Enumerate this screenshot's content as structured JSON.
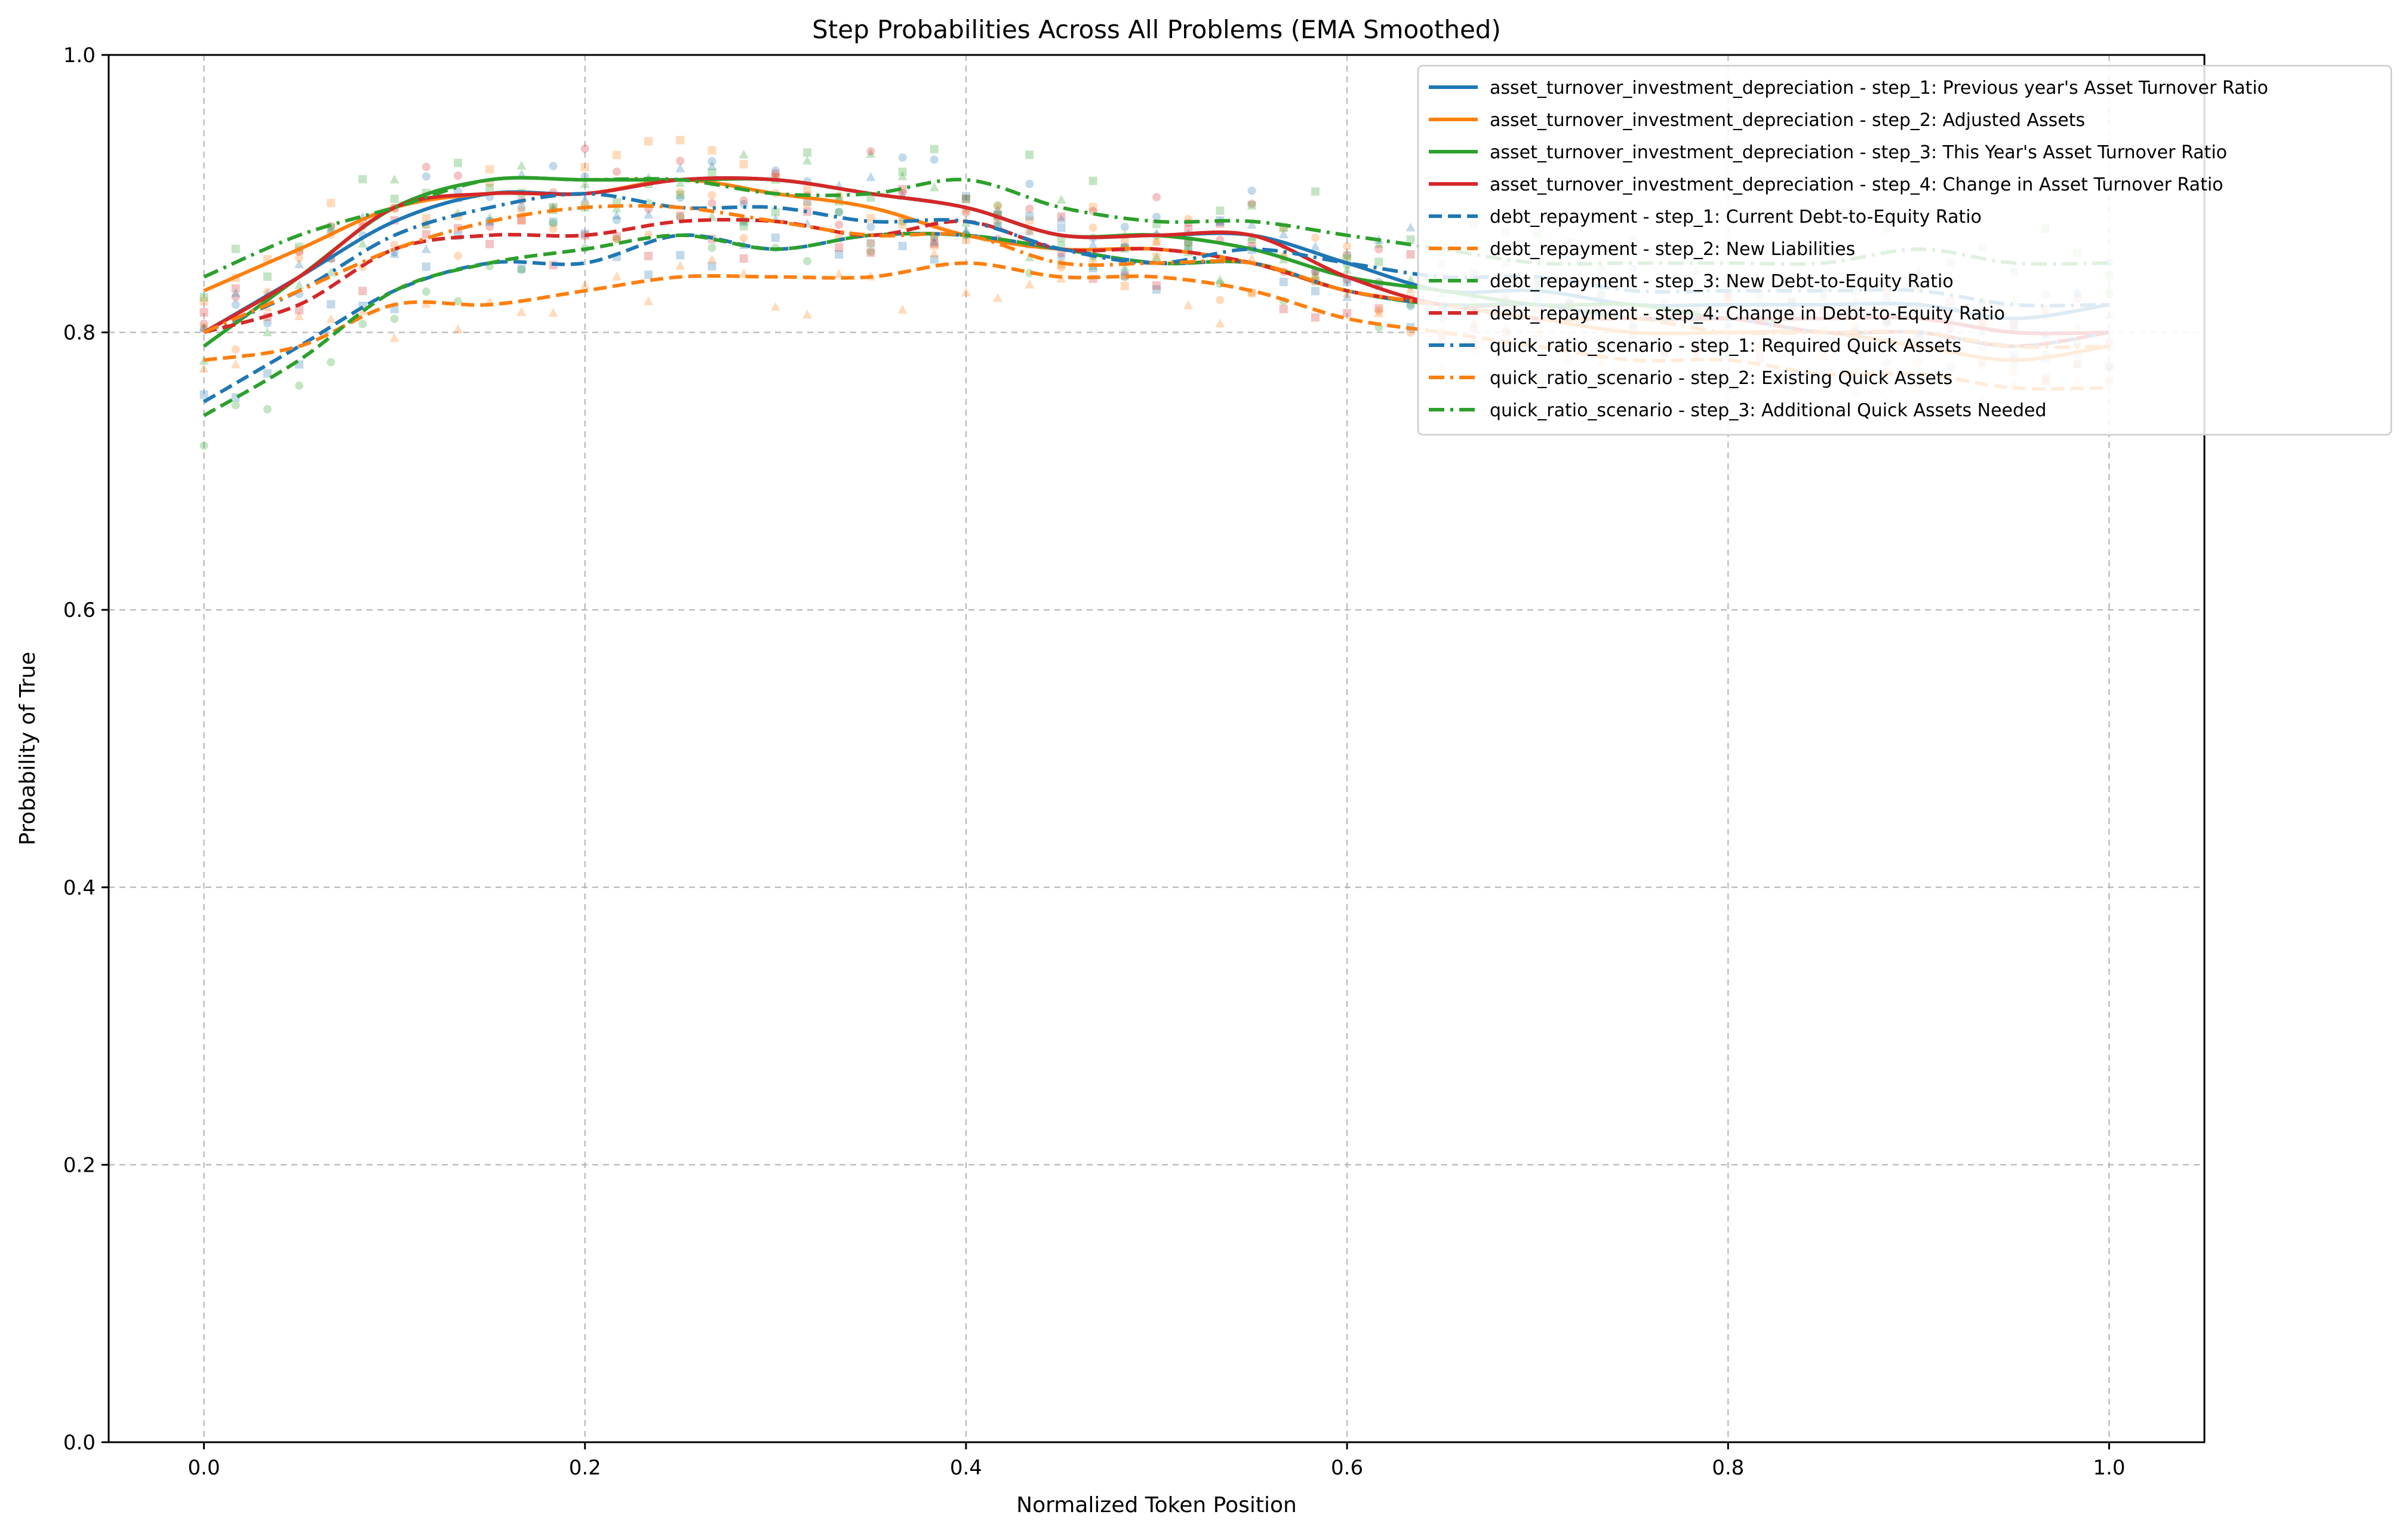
{
  "chart_data": {
    "type": "line",
    "title": "Step Probabilities Across All Problems (EMA Smoothed)",
    "xlabel": "Normalized Token Position",
    "ylabel": "Probability of True",
    "xlim": [
      -0.05,
      1.05
    ],
    "ylim": [
      0.0,
      1.0
    ],
    "xticks": [
      0.0,
      0.2,
      0.4,
      0.6,
      0.8,
      1.0
    ],
    "xtick_labels": [
      "0.0",
      "0.2",
      "0.4",
      "0.6",
      "0.8",
      "1.0"
    ],
    "yticks": [
      0.0,
      0.2,
      0.4,
      0.6,
      0.8,
      1.0
    ],
    "ytick_labels": [
      "0.0",
      "0.2",
      "0.4",
      "0.6",
      "0.8",
      "1.0"
    ],
    "grid": true,
    "legend_position": "top-right",
    "series": [
      {
        "name": "asset_turnover_investment_depreciation - step_1: Previous year's Asset Turnover Ratio",
        "color": "#1f77b4",
        "style": "solid",
        "x": [
          0.0,
          0.05,
          0.1,
          0.15,
          0.2,
          0.25,
          0.3,
          0.35,
          0.4,
          0.45,
          0.5,
          0.55,
          0.6,
          0.65,
          0.7,
          0.75,
          0.8,
          0.85,
          0.9,
          0.95,
          1.0
        ],
        "y": [
          0.8,
          0.84,
          0.88,
          0.9,
          0.9,
          0.91,
          0.91,
          0.9,
          0.89,
          0.87,
          0.87,
          0.87,
          0.85,
          0.83,
          0.83,
          0.82,
          0.82,
          0.82,
          0.82,
          0.81,
          0.82
        ]
      },
      {
        "name": "asset_turnover_investment_depreciation - step_2: Adjusted Assets",
        "color": "#ff7f0e",
        "style": "solid",
        "x": [
          0.0,
          0.05,
          0.1,
          0.15,
          0.2,
          0.25,
          0.3,
          0.35,
          0.4,
          0.45,
          0.5,
          0.55,
          0.6,
          0.65,
          0.7,
          0.75,
          0.8,
          0.85,
          0.9,
          0.95,
          1.0
        ],
        "y": [
          0.83,
          0.86,
          0.89,
          0.9,
          0.9,
          0.91,
          0.9,
          0.89,
          0.87,
          0.86,
          0.86,
          0.85,
          0.83,
          0.82,
          0.81,
          0.8,
          0.8,
          0.8,
          0.79,
          0.78,
          0.79
        ]
      },
      {
        "name": "asset_turnover_investment_depreciation - step_3: This Year's Asset Turnover Ratio",
        "color": "#2ca02c",
        "style": "solid",
        "x": [
          0.0,
          0.05,
          0.1,
          0.15,
          0.2,
          0.25,
          0.3,
          0.35,
          0.4,
          0.45,
          0.5,
          0.55,
          0.6,
          0.65,
          0.7,
          0.75,
          0.8,
          0.85,
          0.9,
          0.95,
          1.0
        ],
        "y": [
          0.79,
          0.84,
          0.89,
          0.91,
          0.91,
          0.91,
          0.91,
          0.9,
          0.89,
          0.87,
          0.87,
          0.86,
          0.84,
          0.83,
          0.82,
          0.82,
          0.81,
          0.81,
          0.81,
          0.8,
          0.8
        ]
      },
      {
        "name": "asset_turnover_investment_depreciation - step_4: Change in Asset Turnover Ratio",
        "color": "#d62728",
        "style": "solid",
        "x": [
          0.0,
          0.05,
          0.1,
          0.15,
          0.2,
          0.25,
          0.3,
          0.35,
          0.4,
          0.45,
          0.5,
          0.55,
          0.6,
          0.65,
          0.7,
          0.75,
          0.8,
          0.85,
          0.9,
          0.95,
          1.0
        ],
        "y": [
          0.8,
          0.84,
          0.89,
          0.9,
          0.9,
          0.91,
          0.91,
          0.9,
          0.89,
          0.87,
          0.87,
          0.87,
          0.84,
          0.82,
          0.82,
          0.81,
          0.81,
          0.81,
          0.81,
          0.8,
          0.8
        ]
      },
      {
        "name": "debt_repayment - step_1: Current Debt-to-Equity Ratio",
        "color": "#1f77b4",
        "style": "dashed",
        "x": [
          0.0,
          0.05,
          0.1,
          0.15,
          0.2,
          0.25,
          0.3,
          0.35,
          0.4,
          0.45,
          0.5,
          0.55,
          0.6,
          0.65,
          0.7,
          0.75,
          0.8,
          0.85,
          0.9,
          0.95,
          1.0
        ],
        "y": [
          0.75,
          0.79,
          0.83,
          0.85,
          0.85,
          0.87,
          0.86,
          0.87,
          0.87,
          0.86,
          0.85,
          0.85,
          0.83,
          0.82,
          0.82,
          0.81,
          0.81,
          0.8,
          0.8,
          0.79,
          0.8
        ]
      },
      {
        "name": "debt_repayment - step_2: New Liabilities",
        "color": "#ff7f0e",
        "style": "dashed",
        "x": [
          0.0,
          0.05,
          0.1,
          0.15,
          0.2,
          0.25,
          0.3,
          0.35,
          0.4,
          0.45,
          0.5,
          0.55,
          0.6,
          0.65,
          0.7,
          0.75,
          0.8,
          0.85,
          0.9,
          0.95,
          1.0
        ],
        "y": [
          0.78,
          0.79,
          0.82,
          0.82,
          0.83,
          0.84,
          0.84,
          0.84,
          0.85,
          0.84,
          0.84,
          0.83,
          0.81,
          0.8,
          0.79,
          0.78,
          0.78,
          0.77,
          0.77,
          0.76,
          0.76
        ]
      },
      {
        "name": "debt_repayment - step_3: New Debt-to-Equity Ratio",
        "color": "#2ca02c",
        "style": "dashed",
        "x": [
          0.0,
          0.05,
          0.1,
          0.15,
          0.2,
          0.25,
          0.3,
          0.35,
          0.4,
          0.45,
          0.5,
          0.55,
          0.6,
          0.65,
          0.7,
          0.75,
          0.8,
          0.85,
          0.9,
          0.95,
          1.0
        ],
        "y": [
          0.74,
          0.78,
          0.83,
          0.85,
          0.86,
          0.87,
          0.86,
          0.87,
          0.87,
          0.86,
          0.85,
          0.85,
          0.83,
          0.82,
          0.82,
          0.81,
          0.81,
          0.8,
          0.8,
          0.79,
          0.8
        ]
      },
      {
        "name": "debt_repayment - step_4: Change in Debt-to-Equity Ratio",
        "color": "#d62728",
        "style": "dashed",
        "x": [
          0.0,
          0.05,
          0.1,
          0.15,
          0.2,
          0.25,
          0.3,
          0.35,
          0.4,
          0.45,
          0.5,
          0.55,
          0.6,
          0.65,
          0.7,
          0.75,
          0.8,
          0.85,
          0.9,
          0.95,
          1.0
        ],
        "y": [
          0.8,
          0.82,
          0.86,
          0.87,
          0.87,
          0.88,
          0.88,
          0.87,
          0.88,
          0.86,
          0.86,
          0.85,
          0.83,
          0.82,
          0.81,
          0.81,
          0.81,
          0.8,
          0.8,
          0.79,
          0.8
        ]
      },
      {
        "name": "quick_ratio_scenario - step_1: Required Quick Assets",
        "color": "#1f77b4",
        "style": "dashdot",
        "x": [
          0.0,
          0.05,
          0.1,
          0.15,
          0.2,
          0.25,
          0.3,
          0.35,
          0.4,
          0.45,
          0.5,
          0.55,
          0.6,
          0.65,
          0.7,
          0.75,
          0.8,
          0.85,
          0.9,
          0.95,
          1.0
        ],
        "y": [
          0.8,
          0.83,
          0.87,
          0.89,
          0.9,
          0.89,
          0.89,
          0.88,
          0.88,
          0.86,
          0.85,
          0.86,
          0.85,
          0.84,
          0.84,
          0.83,
          0.83,
          0.83,
          0.83,
          0.82,
          0.82
        ]
      },
      {
        "name": "quick_ratio_scenario - step_2: Existing Quick Assets",
        "color": "#ff7f0e",
        "style": "dashdot",
        "x": [
          0.0,
          0.05,
          0.1,
          0.15,
          0.2,
          0.25,
          0.3,
          0.35,
          0.4,
          0.45,
          0.5,
          0.55,
          0.6,
          0.65,
          0.7,
          0.75,
          0.8,
          0.85,
          0.9,
          0.95,
          1.0
        ],
        "y": [
          0.8,
          0.83,
          0.86,
          0.88,
          0.89,
          0.89,
          0.88,
          0.87,
          0.87,
          0.85,
          0.85,
          0.85,
          0.83,
          0.82,
          0.81,
          0.81,
          0.8,
          0.8,
          0.8,
          0.79,
          0.79
        ]
      },
      {
        "name": "quick_ratio_scenario - step_3: Additional Quick Assets Needed",
        "color": "#2ca02c",
        "style": "dashdot",
        "x": [
          0.0,
          0.05,
          0.1,
          0.15,
          0.2,
          0.25,
          0.3,
          0.35,
          0.4,
          0.45,
          0.5,
          0.55,
          0.6,
          0.65,
          0.7,
          0.75,
          0.8,
          0.85,
          0.9,
          0.95,
          1.0
        ],
        "y": [
          0.84,
          0.87,
          0.89,
          0.91,
          0.91,
          0.91,
          0.9,
          0.9,
          0.91,
          0.89,
          0.88,
          0.88,
          0.87,
          0.86,
          0.85,
          0.85,
          0.85,
          0.85,
          0.86,
          0.85,
          0.85
        ]
      }
    ]
  }
}
